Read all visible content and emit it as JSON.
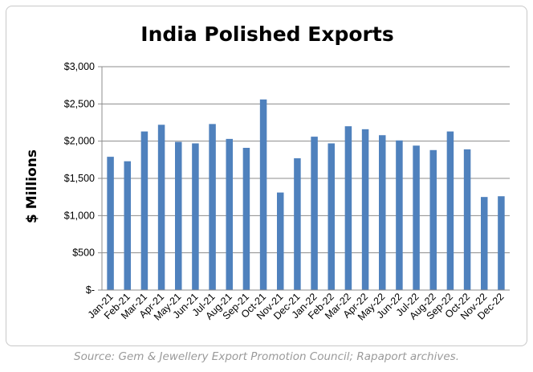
{
  "chart_data": {
    "type": "bar",
    "title": "India Polished Exports",
    "ylabel": "$ Millions",
    "xlabel": "",
    "ylim": [
      0,
      3000
    ],
    "yticks": [
      0,
      500,
      1000,
      1500,
      2000,
      2500,
      3000
    ],
    "ytick_labels": [
      "$-",
      "$500",
      "$1,000",
      "$1,500",
      "$2,000",
      "$2,500",
      "$3,000"
    ],
    "grid": true,
    "legend": "none",
    "bar_color": "#4f81bd",
    "categories": [
      "Jan-21",
      "Feb-21",
      "Mar-21",
      "Apr-21",
      "May-21",
      "Jun-21",
      "Jul-21",
      "Aug-21",
      "Sep-21",
      "Oct-21",
      "Nov-21",
      "Dec-21",
      "Jan-22",
      "Feb-22",
      "Mar-22",
      "Apr-22",
      "May-22",
      "Jun-22",
      "Jul-22",
      "Aug-22",
      "Sep-22",
      "Oct-22",
      "Nov-22",
      "Dec-22"
    ],
    "values": [
      1790,
      1730,
      2130,
      2220,
      1990,
      1970,
      2230,
      2030,
      1910,
      2560,
      1310,
      1770,
      2060,
      1970,
      2200,
      2160,
      2080,
      2010,
      1940,
      1880,
      2130,
      1890,
      1250,
      1260
    ]
  },
  "source": "Source: Gem & Jewellery Export Promotion Council; Rapaport archives."
}
